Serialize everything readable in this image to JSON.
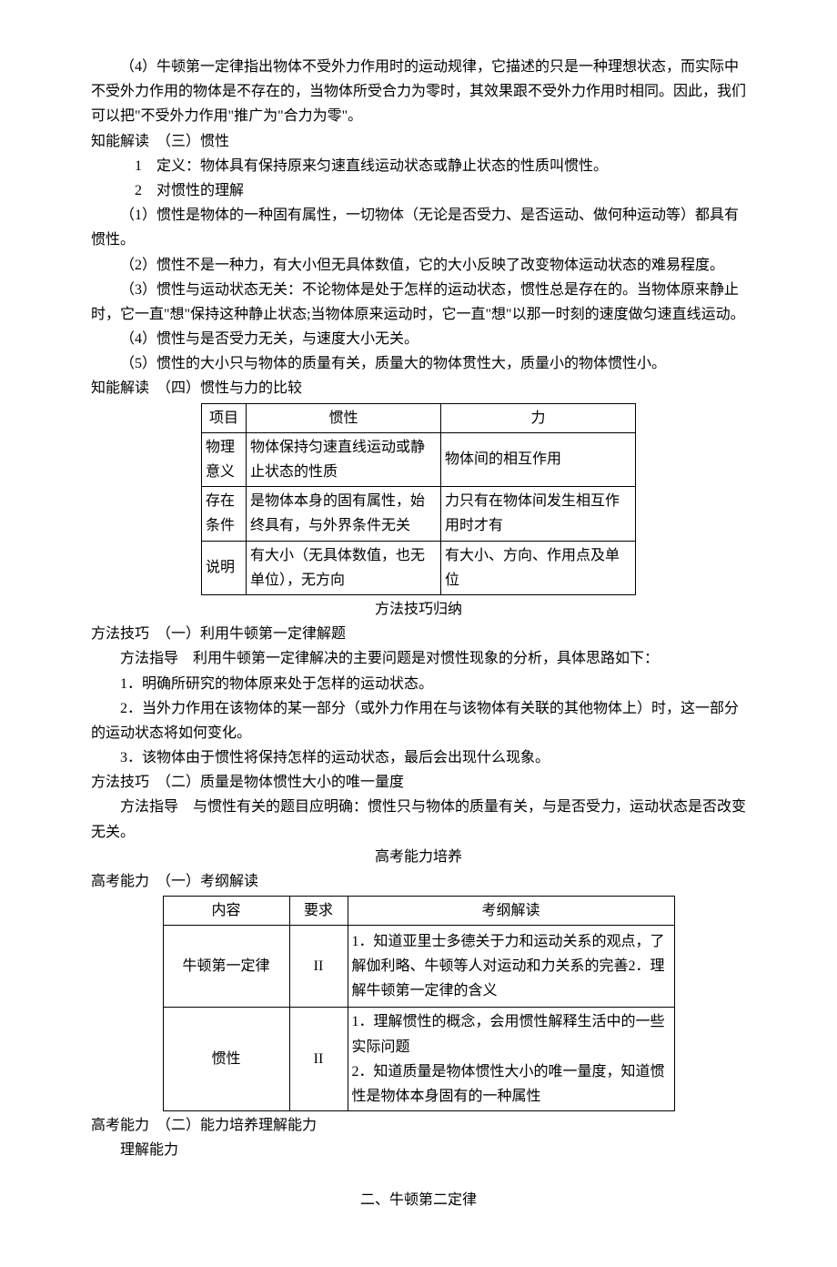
{
  "p": {
    "a4": "（4）牛顿第一定律指出物体不受外力作用时的运动规律，它描述的只是一种理想状态，而实际中不受外力作用的物体是不存在的，当物体所受合力为零时，其效果跟不受外力作用时相同。因此，我们可以把\"不受外力作用\"推广为\"合力为零\"。",
    "h3": "知能解读　（三）惯性",
    "d1": "1　定义：物体具有保持原来匀速直线运动状态或静止状态的性质叫惯性。",
    "d2": "2　对惯性的理解",
    "b1": "（1）惯性是物体的一种固有属性，一切物体（无论是否受力、是否运动、做何种运动等）都具有惯性。",
    "b2": "（2）惯性不是一种力，有大小但无具体数值，它的大小反映了改变物体运动状态的难易程度。",
    "b3": "（3）惯性与运动状态无关：不论物体是处于怎样的运动状态，惯性总是存在的。当物体原来静止时，它一直\"想\"保持这种静止状态;当物体原来运动时，它一直\"想\"以那一时刻的速度做匀速直线运动。",
    "b4": "（4）惯性与是否受力无关，与速度大小无关。",
    "b5": "（5）惯性的大小只与物体的质量有关，质量大的物体贯性大，质量小的物体惯性小。",
    "h4": "知能解读　（四）惯性与力的比较",
    "mt": "方法技巧归纳",
    "m1h": "方法技巧　（一）利用牛顿第一定律解题",
    "m1g": "方法指导　利用牛顿第一定律解决的主要问题是对惯性现象的分析，具体思路如下：",
    "m1a": "1．明确所研究的物体原来处于怎样的运动状态。",
    "m1b": "2．当外力作用在该物体的某一部分（或外力作用在与该物体有关联的其他物体上）时，这一部分的运动状态将如何变化。",
    "m1c": "3．该物体由于惯性将保持怎样的运动状态，最后会出现什么现象。",
    "m2h": "方法技巧　（二）质量是物体惯性大小的唯一量度",
    "m2g": "方法指导　与惯性有关的题目应明确：惯性只与物体的质量有关，与是否受力，运动状态是否改变无关。",
    "gt": "高考能力培养",
    "g1h": "高考能力　（一）考纲解读",
    "g2h": "高考能力　（二）能力培养理解能力",
    "g2t": "理解能力",
    "n2": "二、牛顿第二定律"
  },
  "table1": {
    "h": [
      "项目",
      "惯性",
      "力"
    ],
    "rows": [
      [
        "物理意义",
        "物体保持匀速直线运动或静止状态的性质",
        "物体间的相互作用"
      ],
      [
        "存在条件",
        "是物体本身的固有属性，始终具有，与外界条件无关",
        "力只有在物体间发生相互作用时才有"
      ],
      [
        "说明",
        "有大小（无具体数值，也无单位），无方向",
        "有大小、方向、作用点及单位"
      ]
    ],
    "colw": [
      "40px",
      "205px",
      "205px"
    ]
  },
  "table2": {
    "h": [
      "内容",
      "要求",
      "考纲解读"
    ],
    "rows": [
      [
        "牛顿第一定律",
        "II",
        "1．知道亚里士多德关于力和运动关系的观点，了解伽利略、牛顿等人对运动和力关系的完善2．理解牛顿第一定律的含义"
      ],
      [
        "惯性",
        "II",
        "1．理解惯性的概念，会用惯性解释生活中的一些实际问题\n2．知道质量是物体惯性大小的唯一量度，知道惯性是物体本身固有的一种属性"
      ]
    ],
    "colw": [
      "130px",
      "55px",
      "350px"
    ],
    "rowh": [
      "28px",
      "90px",
      "105px"
    ]
  }
}
